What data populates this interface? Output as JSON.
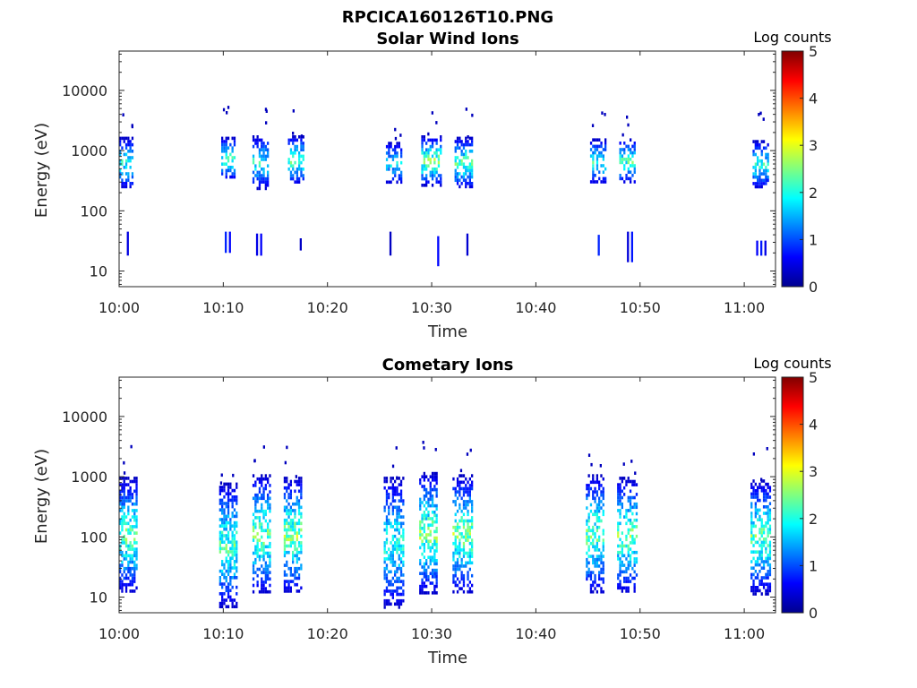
{
  "figure": {
    "title": "RPCICA160126T10.PNG"
  },
  "chart_data": [
    {
      "type": "heatmap",
      "title": "Solar Wind Ions",
      "xlabel": "Time",
      "ylabel": "Energy (eV)",
      "x_ticks": [
        "10:00",
        "10:10",
        "10:20",
        "10:30",
        "10:40",
        "10:50",
        "11:00"
      ],
      "x_tick_minutes": [
        0,
        10,
        20,
        30,
        40,
        50,
        60
      ],
      "xlim_minutes": [
        0,
        63
      ],
      "y_scale": "log",
      "y_ticks": [
        "10",
        "100",
        "1000",
        "10000"
      ],
      "ylim": [
        5.5,
        45000
      ],
      "colorbar": {
        "title": "Log counts",
        "ticks": [
          "0",
          "1",
          "2",
          "3",
          "4",
          "5"
        ],
        "range": [
          0,
          5
        ],
        "colormap": "jet"
      },
      "bursts": [
        {
          "start_min": 0.0,
          "end_min": 1.2,
          "energy_low": 250,
          "energy_high": 1700,
          "peak_log_counts": 2.0,
          "low_energy": {
            "low": 18,
            "high": 45
          }
        },
        {
          "start_min": 9.8,
          "end_min": 11.0,
          "energy_low": 350,
          "energy_high": 1700,
          "peak_log_counts": 2.2,
          "low_energy": {
            "low": 20,
            "high": 45
          }
        },
        {
          "start_min": 12.8,
          "end_min": 14.2,
          "energy_low": 250,
          "energy_high": 1800,
          "peak_log_counts": 2.0,
          "low_energy": {
            "low": 18,
            "high": 42
          }
        },
        {
          "start_min": 16.2,
          "end_min": 17.6,
          "energy_low": 300,
          "energy_high": 1800,
          "peak_log_counts": 2.3,
          "low_energy": {
            "low": 22,
            "high": 35
          }
        },
        {
          "start_min": 25.6,
          "end_min": 27.0,
          "energy_low": 300,
          "energy_high": 1400,
          "peak_log_counts": 1.8,
          "low_energy": {
            "low": 18,
            "high": 45
          }
        },
        {
          "start_min": 29.0,
          "end_min": 30.8,
          "energy_low": 280,
          "energy_high": 1800,
          "peak_log_counts": 2.6,
          "low_energy": {
            "low": 12,
            "high": 38
          }
        },
        {
          "start_min": 32.2,
          "end_min": 33.8,
          "energy_low": 250,
          "energy_high": 1700,
          "peak_log_counts": 2.4,
          "low_energy": {
            "low": 18,
            "high": 42
          }
        },
        {
          "start_min": 45.2,
          "end_min": 46.6,
          "energy_low": 300,
          "energy_high": 1600,
          "peak_log_counts": 2.1,
          "low_energy": {
            "low": 18,
            "high": 40
          }
        },
        {
          "start_min": 48.0,
          "end_min": 49.4,
          "energy_low": 300,
          "energy_high": 1600,
          "peak_log_counts": 2.2,
          "low_energy": {
            "low": 14,
            "high": 45
          }
        },
        {
          "start_min": 60.8,
          "end_min": 62.2,
          "energy_low": 250,
          "energy_high": 1500,
          "peak_log_counts": 2.0,
          "low_energy": {
            "low": 18,
            "high": 32
          }
        }
      ]
    },
    {
      "type": "heatmap",
      "title": "Cometary Ions",
      "xlabel": "Time",
      "ylabel": "Energy (eV)",
      "x_ticks": [
        "10:00",
        "10:10",
        "10:20",
        "10:30",
        "10:40",
        "10:50",
        "11:00"
      ],
      "x_tick_minutes": [
        0,
        10,
        20,
        30,
        40,
        50,
        60
      ],
      "xlim_minutes": [
        0,
        63
      ],
      "y_scale": "log",
      "y_ticks": [
        "10",
        "100",
        "1000",
        "10000"
      ],
      "ylim": [
        5.5,
        45000
      ],
      "colorbar": {
        "title": "Log counts",
        "ticks": [
          "0",
          "1",
          "2",
          "3",
          "4",
          "5"
        ],
        "range": [
          0,
          5
        ],
        "colormap": "jet"
      },
      "bursts": [
        {
          "start_min": 0.0,
          "end_min": 1.6,
          "energy_low": 12,
          "energy_high": 1000,
          "peak_log_counts": 2.4
        },
        {
          "start_min": 9.6,
          "end_min": 11.2,
          "energy_low": 7,
          "energy_high": 800,
          "peak_log_counts": 2.3
        },
        {
          "start_min": 12.8,
          "end_min": 14.4,
          "energy_low": 12,
          "energy_high": 1100,
          "peak_log_counts": 2.5
        },
        {
          "start_min": 15.8,
          "end_min": 17.4,
          "energy_low": 12,
          "energy_high": 1000,
          "peak_log_counts": 2.6
        },
        {
          "start_min": 25.4,
          "end_min": 27.2,
          "energy_low": 7,
          "energy_high": 1000,
          "peak_log_counts": 2.0
        },
        {
          "start_min": 28.8,
          "end_min": 30.4,
          "energy_low": 12,
          "energy_high": 1200,
          "peak_log_counts": 2.6
        },
        {
          "start_min": 32.0,
          "end_min": 33.8,
          "energy_low": 12,
          "energy_high": 1100,
          "peak_log_counts": 2.5
        },
        {
          "start_min": 44.8,
          "end_min": 46.4,
          "energy_low": 12,
          "energy_high": 1100,
          "peak_log_counts": 2.4
        },
        {
          "start_min": 47.8,
          "end_min": 49.6,
          "energy_low": 12,
          "energy_high": 1000,
          "peak_log_counts": 2.5
        },
        {
          "start_min": 60.6,
          "end_min": 62.4,
          "energy_low": 12,
          "energy_high": 900,
          "peak_log_counts": 2.4
        }
      ]
    }
  ]
}
